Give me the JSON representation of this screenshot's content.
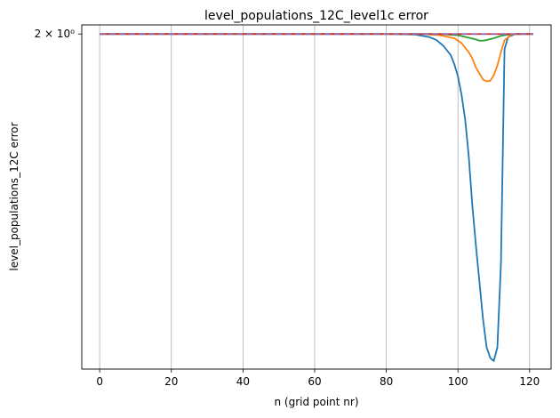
{
  "chart_data": {
    "type": "line",
    "title": "level_populations_12C_level1c error",
    "xlabel": "n (grid point nr)",
    "ylabel": "level_populations_12C error",
    "xlim": [
      -5,
      126
    ],
    "ylim": [
      1.9455,
      2.0015
    ],
    "yscale": "log",
    "x_ticks": [
      0,
      20,
      40,
      60,
      80,
      100,
      120
    ],
    "x_tick_labels": [
      "0",
      "20",
      "40",
      "60",
      "80",
      "100",
      "120"
    ],
    "y_ticks": [
      2.0
    ],
    "y_tick_labels": [
      "2 × 10⁰"
    ],
    "grid": "x",
    "legend": "none",
    "series": [
      {
        "color": "#1f77b4",
        "dash": "solid",
        "x": [
          0,
          80,
          88,
          92,
          94,
          96,
          98,
          99,
          100,
          101,
          102,
          103,
          104,
          105,
          106,
          107,
          108,
          109,
          110,
          111,
          112,
          113,
          114,
          116,
          118,
          121
        ],
        "y": [
          2.0,
          2.0,
          1.9999,
          1.9995,
          1.999,
          1.998,
          1.9965,
          1.995,
          1.993,
          1.99,
          1.986,
          1.98,
          1.972,
          1.9655,
          1.9595,
          1.9535,
          1.949,
          1.9473,
          1.9468,
          1.949,
          1.9625,
          1.9975,
          1.9995,
          2.0,
          2.0,
          2.0
        ]
      },
      {
        "color": "#ff7f0e",
        "dash": "solid",
        "x": [
          0,
          90,
          95,
          99,
          101,
          103,
          104,
          105,
          106,
          107,
          108,
          109,
          110,
          111,
          112,
          113,
          115,
          117,
          121
        ],
        "y": [
          2.0,
          2.0,
          1.9998,
          1.9993,
          1.9985,
          1.997,
          1.996,
          1.9945,
          1.9935,
          1.9925,
          1.9922,
          1.9923,
          1.9932,
          1.9948,
          1.997,
          1.999,
          1.9999,
          2.0,
          2.0
        ]
      },
      {
        "color": "#2ca02c",
        "dash": "solid",
        "x": [
          0,
          95,
          100,
          103,
          105,
          106,
          107,
          108,
          110,
          112,
          114,
          116,
          121
        ],
        "y": [
          2.0,
          2.0,
          1.9998,
          1.9994,
          1.9991,
          1.9989,
          1.9989,
          1.999,
          1.9993,
          1.9997,
          1.9999,
          2.0,
          2.0
        ]
      },
      {
        "color": "#d62728",
        "dash": "solid",
        "x": [
          0,
          121
        ],
        "y": [
          2.0,
          2.0
        ]
      },
      {
        "color": "#9467bd",
        "dash": "dashed",
        "x": [
          0,
          121
        ],
        "y": [
          2.0,
          2.0
        ]
      }
    ]
  }
}
